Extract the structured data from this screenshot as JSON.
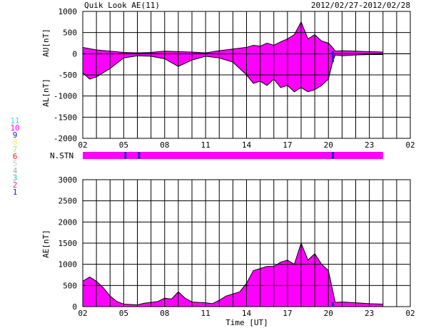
{
  "chart_data": {
    "type": "area",
    "title": "Quik Look AE(11)",
    "date_range": "2012/02/27-2012/02/28",
    "xlabel": "Time [UT]",
    "x_ticks": [
      "02",
      "05",
      "08",
      "11",
      "14",
      "17",
      "20",
      "23",
      "02"
    ],
    "x_range_hours_of_day": [
      2,
      26
    ],
    "fill_color": "#ff00ff",
    "line_color": "#000000",
    "station_legend": [
      {
        "label": "11",
        "color": "#33ddee"
      },
      {
        "label": "10",
        "color": "#ff00ff"
      },
      {
        "label": "9",
        "color": "#2222cc"
      },
      {
        "label": "8",
        "color": "#ffee55"
      },
      {
        "label": "7",
        "color": "#99ee77"
      },
      {
        "label": "6",
        "color": "#ee2222"
      },
      {
        "label": "5",
        "color": "#cccccc"
      },
      {
        "label": "4",
        "color": "#aaaaaa"
      },
      {
        "label": "3",
        "color": "#22bbbb"
      },
      {
        "label": "2",
        "color": "#dd22aa"
      },
      {
        "label": "1",
        "color": "#2222cc"
      }
    ],
    "panels": [
      {
        "id": "au_al",
        "ylabels": [
          "AU[nT]",
          "AL[nT]"
        ],
        "ylim": [
          -2000,
          1000
        ],
        "y_ticks": [
          1000,
          500,
          0,
          -500,
          -1000,
          -1500,
          -2000
        ],
        "series": [
          {
            "key": "AU",
            "x": [
              2,
              2.5,
              3,
              4,
              5,
              6,
              7,
              8,
              9,
              10,
              11,
              12,
              13,
              14,
              14.5,
              15,
              15.5,
              16,
              16.5,
              17,
              17.5,
              18,
              18.5,
              19,
              19.5,
              20,
              20.3,
              20.5,
              21,
              22,
              23,
              24
            ],
            "y": [
              150,
              120,
              90,
              60,
              30,
              20,
              30,
              60,
              50,
              40,
              20,
              70,
              110,
              150,
              200,
              180,
              250,
              200,
              280,
              350,
              450,
              750,
              350,
              450,
              300,
              250,
              150,
              60,
              70,
              60,
              50,
              40
            ]
          },
          {
            "key": "AL",
            "x": [
              2,
              2.5,
              3,
              4,
              5,
              6,
              7,
              8,
              9,
              10,
              11,
              12,
              13,
              14,
              14.5,
              15,
              15.5,
              16,
              16.5,
              17,
              17.5,
              18,
              18.5,
              19,
              19.5,
              20,
              20.3,
              20.5,
              21,
              22,
              23,
              24
            ],
            "y": [
              -450,
              -600,
              -550,
              -350,
              -100,
              -50,
              -60,
              -120,
              -300,
              -150,
              -60,
              -100,
              -200,
              -500,
              -700,
              -650,
              -750,
              -600,
              -800,
              -750,
              -900,
              -800,
              -900,
              -850,
              -750,
              -600,
              -200,
              -30,
              -50,
              -30,
              -20,
              -20
            ]
          }
        ]
      },
      {
        "id": "stations",
        "ylabels": [
          "N.STN"
        ],
        "bar_color": "#ff00ff",
        "marks": [
          {
            "x": 5.1,
            "color": "#2222cc"
          },
          {
            "x": 6.1,
            "color": "#2222cc"
          },
          {
            "x": 20.3,
            "color": "#2222cc"
          }
        ],
        "bar_end": 24
      },
      {
        "id": "ae",
        "ylabels": [
          "AE[nT]"
        ],
        "ylim": [
          0,
          3000
        ],
        "y_ticks": [
          3000,
          2500,
          2000,
          1500,
          1000,
          500,
          0
        ],
        "series": [
          {
            "key": "AE",
            "x": [
              2,
              2.5,
              3,
              3.5,
              4,
              4.5,
              5,
              5.5,
              6,
              6.5,
              7,
              7.5,
              8,
              8.5,
              9,
              9.5,
              10,
              10.5,
              11,
              11.5,
              12,
              12.5,
              13,
              13.5,
              14,
              14.5,
              15,
              15.5,
              16,
              16.5,
              17,
              17.5,
              18,
              18.5,
              19,
              19.5,
              20,
              20.3,
              20.5,
              21,
              22,
              23,
              24
            ],
            "y": [
              600,
              700,
              600,
              450,
              250,
              120,
              60,
              50,
              40,
              80,
              100,
              120,
              200,
              180,
              350,
              200,
              110,
              100,
              90,
              70,
              150,
              250,
              300,
              350,
              550,
              850,
              900,
              950,
              950,
              1050,
              1100,
              1000,
              1500,
              1100,
              1250,
              1000,
              850,
              400,
              100,
              110,
              90,
              70,
              60
            ]
          }
        ]
      }
    ]
  }
}
